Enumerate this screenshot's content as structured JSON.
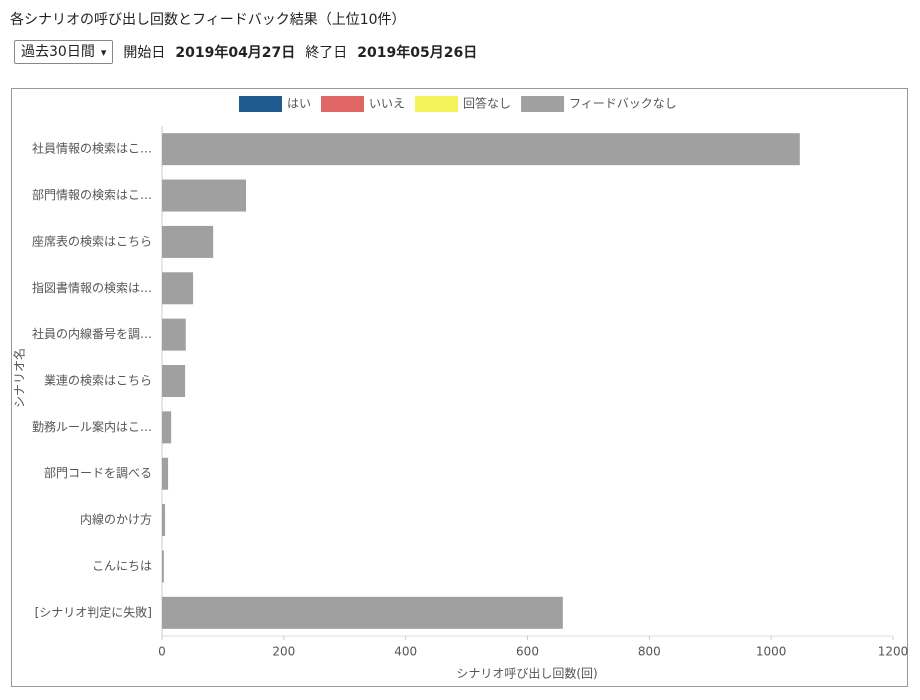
{
  "page": {
    "title": "各シナリオの呼び出し回数とフィードバック結果（上位10件）",
    "period": "過去30日間",
    "start_label": "開始日",
    "start_date": "2019年04月27日",
    "end_label": "終了日",
    "end_date": "2019年05月26日"
  },
  "chart_data": {
    "type": "hbar-stacked",
    "categories": [
      "社員情報の検索はこ…",
      "部門情報の検索はこ…",
      "座席表の検索はこちら",
      "指図書情報の検索は…",
      "社員の内線番号を調…",
      "業連の検索はこちら",
      "勤務ルール案内はこ…",
      "部門コードを調べる",
      "内線のかけ方",
      "こんにちは",
      "[シナリオ判定に失敗]"
    ],
    "series": [
      {
        "name": "はい",
        "color": "#1f5b8e",
        "values": [
          0,
          0,
          0,
          0,
          0,
          0,
          0,
          0,
          0,
          0,
          0
        ]
      },
      {
        "name": "いいえ",
        "color": "#e06666",
        "values": [
          0,
          0,
          0,
          0,
          0,
          0,
          0,
          0,
          0,
          0,
          0
        ]
      },
      {
        "name": "回答なし",
        "color": "#f4f45a",
        "values": [
          0,
          0,
          0,
          0,
          0,
          0,
          0,
          0,
          0,
          0,
          0
        ]
      },
      {
        "name": "フィードバックなし",
        "color": "#a0a0a0",
        "values": [
          1047,
          138,
          84,
          51,
          39,
          38,
          15,
          10,
          5,
          3,
          658
        ]
      }
    ],
    "xlim": [
      0,
      1200
    ],
    "xticks": [
      0,
      200,
      400,
      600,
      800,
      1000,
      1200
    ],
    "x_label": "シナリオ呼び出し回数(回)",
    "y_label": "シナリオ名",
    "legend": "top"
  }
}
